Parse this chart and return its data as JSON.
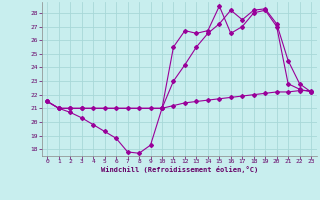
{
  "xlabel": "Windchill (Refroidissement éolien,°C)",
  "bg_color": "#c8eeee",
  "grid_color": "#a8d8d8",
  "line_color": "#990099",
  "ylim": [
    17.5,
    28.8
  ],
  "xlim": [
    -0.5,
    23.5
  ],
  "yticks": [
    18,
    19,
    20,
    21,
    22,
    23,
    24,
    25,
    26,
    27,
    28
  ],
  "xticks": [
    0,
    1,
    2,
    3,
    4,
    5,
    6,
    7,
    8,
    9,
    10,
    11,
    12,
    13,
    14,
    15,
    16,
    17,
    18,
    19,
    20,
    21,
    22,
    23
  ],
  "series1_x": [
    0,
    1,
    2,
    3,
    4,
    5,
    6,
    7,
    8,
    9,
    10,
    11,
    12,
    13,
    14,
    15,
    16,
    17,
    18,
    19,
    20,
    21,
    22,
    23
  ],
  "series1_y": [
    21.5,
    21.0,
    20.7,
    20.3,
    19.8,
    19.3,
    18.8,
    17.8,
    17.7,
    18.3,
    21.0,
    25.5,
    26.7,
    26.5,
    26.7,
    28.5,
    26.5,
    27.0,
    28.0,
    28.2,
    27.0,
    22.8,
    22.4,
    22.2
  ],
  "series2_x": [
    0,
    1,
    2,
    3,
    4,
    5,
    6,
    7,
    8,
    9,
    10,
    11,
    12,
    13,
    14,
    15,
    16,
    17,
    18,
    19,
    20,
    21,
    22,
    23
  ],
  "series2_y": [
    21.5,
    21.0,
    21.0,
    21.0,
    21.0,
    21.0,
    21.0,
    21.0,
    21.0,
    21.0,
    21.0,
    21.2,
    21.4,
    21.5,
    21.6,
    21.7,
    21.8,
    21.9,
    22.0,
    22.1,
    22.2,
    22.2,
    22.3,
    22.3
  ],
  "series3_x": [
    0,
    1,
    2,
    3,
    10,
    11,
    12,
    13,
    14,
    15,
    16,
    17,
    18,
    19,
    20,
    21,
    22,
    23
  ],
  "series3_y": [
    21.5,
    21.0,
    21.0,
    21.0,
    21.0,
    23.0,
    24.2,
    25.5,
    26.5,
    27.2,
    28.2,
    27.5,
    28.2,
    28.3,
    27.2,
    24.5,
    22.8,
    22.2
  ]
}
